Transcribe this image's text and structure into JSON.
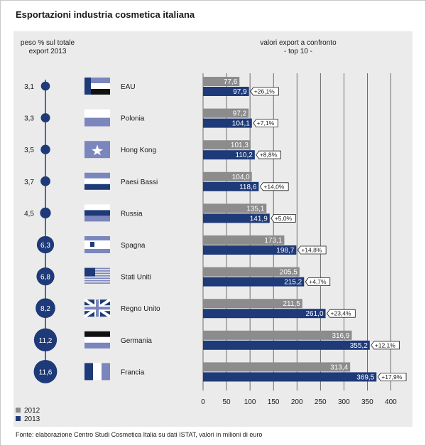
{
  "title": "Esportazioni industria cosmetica italiana",
  "left_header": [
    "peso % sul totale",
    "export 2013"
  ],
  "right_header": [
    "valori export a confronto",
    "- top 10 -"
  ],
  "source": "Fonte: elaborazione Centro Studi Cosmetica Italia su dati ISTAT, valori in milioni di euro",
  "colors": {
    "bar_2012": "#8c8c8c",
    "bar_2013": "#1e3a78",
    "bubble": "#1e3a78",
    "flag_light": "#7b86bd",
    "flag_dark": "#1e3a78"
  },
  "chart_data": {
    "type": "bar",
    "orientation": "horizontal",
    "categories": [
      "EAU",
      "Polonia",
      "Hong Kong",
      "Paesi Bassi",
      "Russia",
      "Spagna",
      "Stati Uniti",
      "Regno Unito",
      "Germania",
      "Francia"
    ],
    "share_labels": [
      "3,1",
      "3,3",
      "3,5",
      "3,7",
      "4,5",
      "6,3",
      "6,8",
      "8,2",
      "11,2",
      "11,6"
    ],
    "share_values": [
      3.1,
      3.3,
      3.5,
      3.7,
      4.5,
      6.3,
      6.8,
      8.2,
      11.2,
      11.6
    ],
    "series": [
      {
        "name": "2012",
        "values": [
          77.6,
          97.2,
          101.3,
          104.0,
          135.1,
          173.1,
          205.5,
          211.5,
          316.9,
          313.4
        ],
        "labels": [
          "77,6",
          "97,2",
          "101,3",
          "104,0",
          "135,1",
          "173,1",
          "205,5",
          "211,5",
          "316,9",
          "313,4"
        ]
      },
      {
        "name": "2013",
        "values": [
          97.9,
          104.1,
          110.2,
          118.6,
          141.9,
          198.7,
          215.2,
          261.0,
          355.2,
          369.5
        ],
        "labels": [
          "97,9",
          "104,1",
          "110,2",
          "118,6",
          "141,9",
          "198,7",
          "215,2",
          "261,0",
          "355,2",
          "369,5"
        ]
      }
    ],
    "change_labels": [
      "+26,1%",
      "+7,1%",
      "+8,8%",
      "+14,0%",
      "+5,0%",
      "+14,8%",
      "+4,7%",
      "+23,4%",
      "+12,1%",
      "+17,9%"
    ],
    "x_ticks": [
      0,
      50,
      100,
      150,
      200,
      250,
      300,
      350,
      400
    ],
    "xlim": [
      0,
      430
    ],
    "grid": true,
    "legend_position": "bottom-left"
  }
}
